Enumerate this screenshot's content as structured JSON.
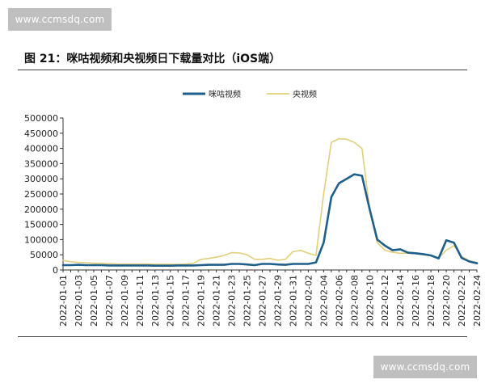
{
  "watermark": {
    "top_text": "www.ccmsdq.com",
    "bottom_text": "www.ccmsdq.com"
  },
  "figure_title": "图 21：咪咕视频和央视频日下载量对比（iOS端）",
  "colors": {
    "migu": "#1f5f8b",
    "cctv": "#e3cf7a",
    "axis": "#333333"
  },
  "chart_data": {
    "type": "line",
    "title": "",
    "xlabel": "",
    "ylabel": "",
    "ylim": [
      0,
      500000
    ],
    "yticks": [
      0,
      50000,
      100000,
      150000,
      200000,
      250000,
      300000,
      350000,
      400000,
      450000,
      500000
    ],
    "ytick_labels": [
      "0",
      "50000",
      "100000",
      "150000",
      "200000",
      "250000",
      "300000",
      "350000",
      "400000",
      "450000",
      "500000"
    ],
    "legend_position": "top-center",
    "grid": false,
    "x": [
      "2022-01-01",
      "2022-01-02",
      "2022-01-03",
      "2022-01-04",
      "2022-01-05",
      "2022-01-06",
      "2022-01-07",
      "2022-01-08",
      "2022-01-09",
      "2022-01-10",
      "2022-01-11",
      "2022-01-12",
      "2022-01-13",
      "2022-01-14",
      "2022-01-15",
      "2022-01-16",
      "2022-01-17",
      "2022-01-18",
      "2022-01-19",
      "2022-01-20",
      "2022-01-21",
      "2022-01-22",
      "2022-01-23",
      "2022-01-24",
      "2022-01-25",
      "2022-01-26",
      "2022-01-27",
      "2022-01-28",
      "2022-01-29",
      "2022-01-30",
      "2022-01-31",
      "2022-02-01",
      "2022-02-02",
      "2022-02-03",
      "2022-02-04",
      "2022-02-05",
      "2022-02-06",
      "2022-02-07",
      "2022-02-08",
      "2022-02-09",
      "2022-02-10",
      "2022-02-11",
      "2022-02-12",
      "2022-02-13",
      "2022-02-14",
      "2022-02-15",
      "2022-02-16",
      "2022-02-17",
      "2022-02-18",
      "2022-02-19",
      "2022-02-20",
      "2022-02-21",
      "2022-02-22",
      "2022-02-23",
      "2022-02-24"
    ],
    "x_tick_labels": [
      "2022-01-01",
      "2022-01-03",
      "2022-01-05",
      "2022-01-07",
      "2022-01-09",
      "2022-01-11",
      "2022-01-13",
      "2022-01-15",
      "2022-01-17",
      "2022-01-19",
      "2022-01-21",
      "2022-01-23",
      "2022-01-25",
      "2022-01-27",
      "2022-01-29",
      "2022-01-31",
      "2022-02-02",
      "2022-02-04",
      "2022-02-06",
      "2022-02-08",
      "2022-02-10",
      "2022-02-12",
      "2022-02-14",
      "2022-02-16",
      "2022-02-18",
      "2022-02-20",
      "2022-02-22",
      "2022-02-24"
    ],
    "series": [
      {
        "name": "咪咕视频",
        "color": "#1f5f8b",
        "values": [
          16000,
          16000,
          17000,
          16000,
          16000,
          16000,
          15000,
          15000,
          15000,
          15000,
          15000,
          15000,
          14000,
          14000,
          14000,
          15000,
          15000,
          15000,
          16000,
          17000,
          17000,
          17000,
          20000,
          20000,
          18000,
          16000,
          20000,
          20000,
          18000,
          17000,
          20000,
          20000,
          20000,
          25000,
          90000,
          240000,
          285000,
          300000,
          315000,
          310000,
          200000,
          100000,
          80000,
          65000,
          68000,
          57000,
          55000,
          52000,
          48000,
          38000,
          98000,
          90000,
          40000,
          28000,
          22000
        ]
      },
      {
        "name": "央视频",
        "color": "#e3cf7a",
        "values": [
          32000,
          27000,
          25000,
          24000,
          22000,
          22000,
          21000,
          20000,
          20000,
          20000,
          20000,
          20000,
          19000,
          19000,
          19000,
          19000,
          20000,
          22000,
          35000,
          38000,
          42000,
          48000,
          57000,
          56000,
          50000,
          35000,
          35000,
          38000,
          32000,
          35000,
          60000,
          65000,
          55000,
          48000,
          250000,
          420000,
          432000,
          430000,
          420000,
          400000,
          200000,
          90000,
          65000,
          58000,
          55000,
          55000,
          54000,
          50000,
          47000,
          40000,
          65000,
          80000,
          45000,
          30000,
          25000
        ]
      }
    ]
  }
}
